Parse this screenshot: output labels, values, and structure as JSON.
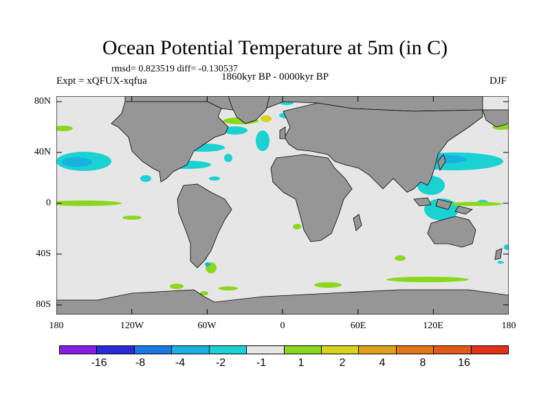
{
  "title": "Ocean Potential Temperature at 5m (in C)",
  "stats": "rmsd= 0.823519 diff= -0.130537",
  "expt": "Expt = xQFUX-xqfua",
  "period": "1860kyr BP - 0000kyr BP",
  "season": "DJF",
  "colors": {
    "ocean": "#e6e6e6",
    "land": "#969696"
  },
  "lat_labels": [
    "80N",
    "40N",
    "0",
    "40S",
    "80S"
  ],
  "lon_labels": [
    "180",
    "120W",
    "60W",
    "0",
    "60E",
    "120E",
    "180"
  ],
  "colorbar": {
    "colors": [
      "#8a1ee6",
      "#2a2ad8",
      "#1a78e0",
      "#1ab0e0",
      "#1ad2d2",
      "#e6e6e6",
      "#8ad81e",
      "#d8d21e",
      "#e0a01e",
      "#e07818",
      "#e05a18",
      "#e03218"
    ],
    "labels": [
      "-16",
      "-8",
      "-4",
      "-2",
      "-1",
      "1",
      "2",
      "4",
      "8",
      "16"
    ]
  }
}
